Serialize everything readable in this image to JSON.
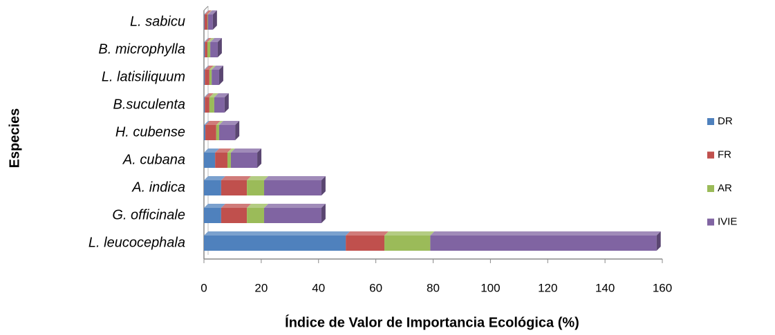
{
  "chart_data": {
    "type": "bar",
    "orientation": "horizontal",
    "stacked": true,
    "xlabel": "Índice de Valor de Importancia Ecológica (%)",
    "ylabel": "Especies",
    "categories": [
      "L. leucocephala",
      "G. officinale",
      "A. indica",
      "A. cubana",
      "H. cubense",
      "B.suculenta",
      "L. latisiliquum",
      "B. microphylla",
      "L. sabicu"
    ],
    "series": [
      {
        "name": "DR",
        "color": "#4f81bd",
        "values": [
          49.5,
          6,
          6,
          3.9,
          0.5,
          0.3,
          0.3,
          0.3,
          0.2
        ]
      },
      {
        "name": "FR",
        "color": "#c0504d",
        "values": [
          13.5,
          9,
          9,
          4.3,
          3.8,
          1.6,
          1.6,
          0.9,
          1
        ]
      },
      {
        "name": "AR",
        "color": "#9bbb59",
        "values": [
          16,
          6,
          6,
          1.2,
          1,
          1.7,
          0.8,
          1,
          0.2
        ]
      },
      {
        "name": "IVIE",
        "color": "#8064a2",
        "values": [
          79,
          20,
          20,
          9.2,
          5.6,
          3.6,
          2.6,
          2.6,
          1.7
        ]
      }
    ],
    "xlim": [
      0,
      160
    ],
    "xticks": [
      0,
      20,
      40,
      60,
      80,
      100,
      120,
      140,
      160
    ],
    "legend": "right",
    "grid": false
  }
}
